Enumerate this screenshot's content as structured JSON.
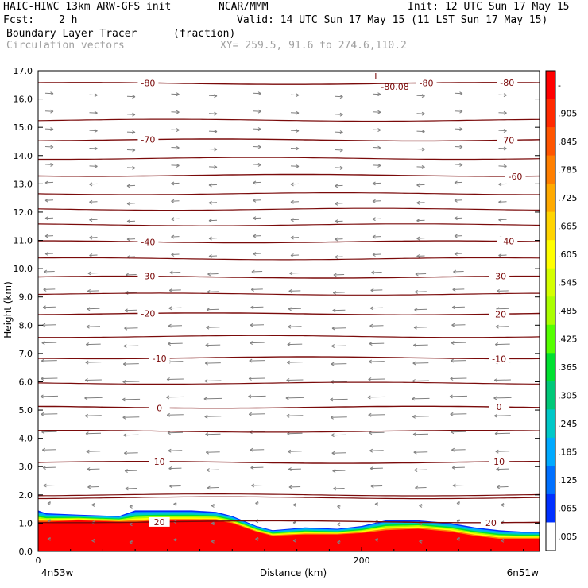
{
  "header": {
    "model": "HAIC-HIWC 13km ARW-GFS init",
    "org": "NCAR/MMM",
    "init": "Init: 12 UTC Sun 17 May 15",
    "fcst_label": "Fcst:",
    "fcst_value": "2 h",
    "valid": "Valid: 14 UTC Sun 17 May 15 (11 LST Sun 17 May 15)",
    "field_name": "Boundary Layer Tracer",
    "field_units": "(fraction)",
    "vectors_label": "Circulation vectors",
    "xy_label": "XY= 259.5, 91.6 to 274.6,110.2"
  },
  "colors": {
    "contour": "#7a0a0a",
    "vector": "#808080",
    "axis": "#000000"
  },
  "chart_data": {
    "type": "heatmap",
    "title": "Boundary Layer Tracer (fraction)",
    "xlabel": "Distance (km)",
    "ylabel": "Height (km)",
    "xlim": [
      0,
      310
    ],
    "ylim": [
      0,
      17
    ],
    "x_ticks": [
      0,
      200
    ],
    "x_end_labels": {
      "left": "4n53w",
      "right": "6n51w"
    },
    "y_ticks": [
      "0.0",
      "1.0",
      "2.0",
      "3.0",
      "4.0",
      "5.0",
      "6.0",
      "7.0",
      "8.0",
      "9.0",
      "10.0",
      "11.0",
      "12.0",
      "13.0",
      "14.0",
      "15.0",
      "16.0",
      "17.0"
    ],
    "colorbar": {
      "labels": [
        "-",
        ".905",
        ".845",
        ".785",
        ".725",
        ".665",
        ".605",
        ".545",
        ".485",
        ".425",
        ".365",
        ".305",
        ".245",
        ".185",
        ".125",
        ".065",
        ".005"
      ],
      "colors": [
        "#ff0000",
        "#ff2a00",
        "#ff5500",
        "#ff7f00",
        "#ffaa00",
        "#ffd400",
        "#ffff00",
        "#d4ff00",
        "#aaff00",
        "#55ff00",
        "#00e030",
        "#00c878",
        "#00c8c8",
        "#00aaff",
        "#0070ff",
        "#0030ff",
        "#ffffff"
      ]
    },
    "tracer_top": {
      "x": [
        0,
        5,
        25,
        50,
        60,
        75,
        95,
        110,
        120,
        135,
        145,
        165,
        185,
        200,
        215,
        235,
        255,
        270,
        285,
        300,
        310
      ],
      "top_red": [
        1.05,
        1.05,
        1.1,
        1.05,
        1.05,
        1.1,
        1.1,
        1.1,
        1.0,
        0.7,
        0.55,
        0.6,
        0.6,
        0.65,
        0.75,
        0.8,
        0.7,
        0.55,
        0.45,
        0.45,
        0.45
      ],
      "top_blue": [
        1.45,
        1.35,
        1.3,
        1.25,
        1.45,
        1.45,
        1.45,
        1.4,
        1.25,
        0.9,
        0.75,
        0.85,
        0.8,
        0.9,
        1.1,
        1.1,
        1.0,
        0.85,
        0.75,
        0.7,
        0.7
      ]
    },
    "contours": [
      {
        "label": "20",
        "height": 1.05,
        "label_positions": [
          75,
          280
        ]
      },
      {
        "label": "10",
        "height": 3.15,
        "label_positions": [
          75,
          285
        ]
      },
      {
        "label": "0",
        "height": 5.1,
        "label_positions": [
          75,
          285
        ]
      },
      {
        "label": "-10",
        "height": 6.85,
        "label_positions": [
          75,
          285
        ]
      },
      {
        "label": "-20",
        "height": 8.4,
        "label_positions": [
          68,
          285
        ]
      },
      {
        "label": "-30",
        "height": 9.7,
        "label_positions": [
          68,
          285
        ]
      },
      {
        "label": "-40",
        "height": 10.95,
        "label_positions": [
          68,
          290
        ]
      },
      {
        "label": "-60",
        "height": 13.3,
        "label_positions": [
          295
        ]
      },
      {
        "label": "-70",
        "height": 14.55,
        "label_positions": [
          68,
          290
        ]
      },
      {
        "label": "-80",
        "height": 16.55,
        "label_positions": [
          68,
          240,
          290
        ]
      }
    ],
    "extra_contour_heights": [
      1.9,
      2.0,
      4.25,
      5.95,
      7.6,
      9.1,
      10.35,
      11.55,
      12.1,
      12.65,
      13.9,
      15.25
    ],
    "extremum": {
      "symbol": "L",
      "value": "-80.08",
      "x": 205,
      "height": 16.75
    }
  }
}
